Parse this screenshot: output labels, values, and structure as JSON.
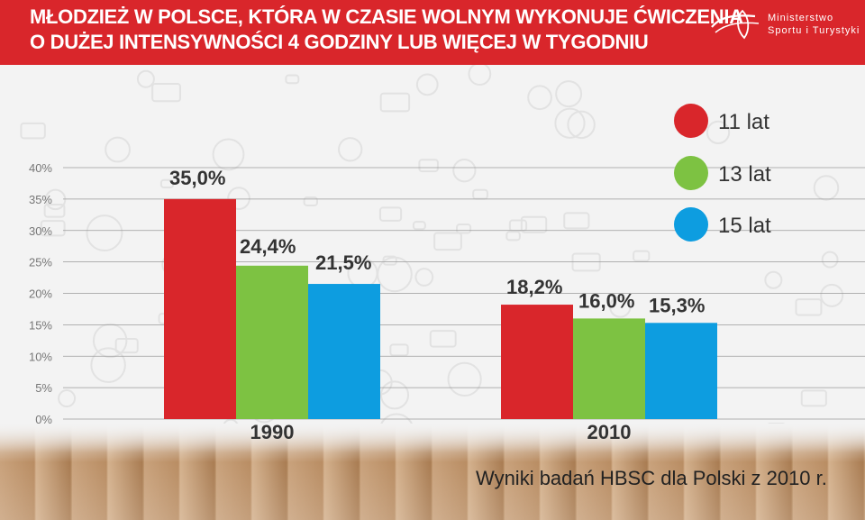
{
  "header": {
    "title_line1": "MŁODZIEŻ W POLSCE, KTÓRA W CZASIE WOLNYM WYKONUJE ĆWICZENIA",
    "title_line2": "O DUŻEJ INTENSYWNOŚCI 4 GODZINY LUB WIĘCEJ W TYGODNIU",
    "ministry_line1": "Ministerstwo",
    "ministry_line2": "Sportu i Turystyki"
  },
  "footer": {
    "source": "Wyniki badań HBSC dla Polski z 2010 r."
  },
  "colors": {
    "header": "#d9262b",
    "s11": "#d9262b",
    "s13": "#7dc242",
    "s15": "#0d9de0"
  },
  "chart_data": {
    "type": "bar",
    "title": "MŁODZIEŻ W POLSCE, KTÓRA W CZASIE WOLNYM WYKONUJE ĆWICZENIA O DUŻEJ INTENSYWNOŚCI 4 GODZINY LUB WIĘCEJ W TYGODNIU",
    "categories": [
      "1990",
      "2010"
    ],
    "series": [
      {
        "name": "11 lat",
        "color": "#d9262b",
        "values": [
          35.0,
          18.2
        ],
        "labels": [
          "35,0%",
          "18,2%"
        ]
      },
      {
        "name": "13 lat",
        "color": "#7dc242",
        "values": [
          24.4,
          16.0
        ],
        "labels": [
          "24,4%",
          "16,0%"
        ]
      },
      {
        "name": "15 lat",
        "color": "#0d9de0",
        "values": [
          21.5,
          15.3
        ],
        "labels": [
          "21,5%",
          "15,3%"
        ]
      }
    ],
    "yticks": [
      "0%",
      "5%",
      "10%",
      "15%",
      "20%",
      "25%",
      "30%",
      "35%",
      "40%"
    ],
    "ylim": [
      0,
      40
    ],
    "grid": true,
    "legend": "top-right"
  }
}
